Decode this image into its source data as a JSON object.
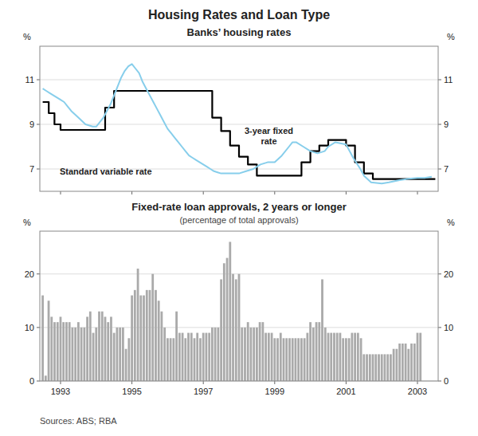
{
  "title": "Housing Rates and Loan Type",
  "source": "Sources: ABS; RBA",
  "chart_data": [
    {
      "type": "line",
      "title": "Banks’ housing rates",
      "ylabel": "%",
      "y2label": "%",
      "xlim": [
        1992.42,
        2003.58
      ],
      "xticks": [
        1993,
        1995,
        1997,
        1999,
        2001,
        2003
      ],
      "ylim": [
        6.0,
        12.5
      ],
      "yticks": [
        7,
        9,
        11
      ],
      "grid": true,
      "tick_labels": "y",
      "series": [
        {
          "name": "Standard variable rate",
          "color": "#000000",
          "line_style": "step",
          "x": [
            1992.5,
            1992.67,
            1992.83,
            1993.0,
            1993.25,
            1993.5,
            1993.75,
            1994.0,
            1994.25,
            1994.5,
            1994.75,
            1995.0,
            1995.25,
            1995.5,
            1995.75,
            1996.0,
            1996.25,
            1996.5,
            1996.75,
            1997.0,
            1997.25,
            1997.5,
            1997.75,
            1998.0,
            1998.25,
            1998.5,
            1998.75,
            1999.0,
            1999.25,
            1999.5,
            1999.75,
            2000.0,
            2000.25,
            2000.5,
            2000.75,
            2001.0,
            2001.25,
            2001.5,
            2001.75,
            2002.0,
            2002.25,
            2002.5,
            2002.75,
            2003.0,
            2003.5
          ],
          "values": [
            10.0,
            9.5,
            9.0,
            8.75,
            8.75,
            8.75,
            8.75,
            8.75,
            9.75,
            10.5,
            10.5,
            10.5,
            10.5,
            10.5,
            10.5,
            10.5,
            10.5,
            10.5,
            10.5,
            10.5,
            9.3,
            8.7,
            8.05,
            7.55,
            7.2,
            6.7,
            6.7,
            6.7,
            6.7,
            6.7,
            7.3,
            7.8,
            8.05,
            8.3,
            8.3,
            8.05,
            7.3,
            6.8,
            6.55,
            6.55,
            6.55,
            6.55,
            6.55,
            6.55,
            6.55
          ]
        },
        {
          "name": "3-year fixed\nrate",
          "color": "#87ceeb",
          "line_style": "solid",
          "x": [
            1992.5,
            1992.6,
            1992.7,
            1992.8,
            1992.9,
            1993.0,
            1993.1,
            1993.2,
            1993.3,
            1993.5,
            1993.7,
            1993.9,
            1994.0,
            1994.2,
            1994.4,
            1994.5,
            1994.6,
            1994.7,
            1994.8,
            1994.9,
            1995.0,
            1995.1,
            1995.2,
            1995.25,
            1995.3,
            1995.4,
            1995.5,
            1995.6,
            1995.7,
            1995.8,
            1995.9,
            1996.0,
            1996.1,
            1996.2,
            1996.3,
            1996.4,
            1996.5,
            1996.6,
            1996.7,
            1996.8,
            1996.9,
            1997.0,
            1997.1,
            1997.2,
            1997.3,
            1997.4,
            1997.5,
            1997.6,
            1997.7,
            1998.0,
            1998.2,
            1998.4,
            1998.5,
            1998.6,
            1998.8,
            1999.0,
            1999.2,
            1999.4,
            1999.5,
            1999.6,
            1999.8,
            2000.0,
            2000.2,
            2000.4,
            2000.5,
            2000.7,
            2001.0,
            2001.2,
            2001.4,
            2001.5,
            2001.7,
            2002.0,
            2002.2,
            2002.5,
            2002.7,
            2003.0,
            2003.2,
            2003.4
          ],
          "values": [
            10.6,
            10.5,
            10.4,
            10.3,
            10.2,
            10.1,
            10.0,
            9.8,
            9.6,
            9.3,
            9.0,
            8.9,
            8.9,
            9.3,
            9.9,
            10.3,
            10.7,
            11.1,
            11.4,
            11.6,
            11.7,
            11.5,
            11.3,
            11.1,
            10.9,
            10.6,
            10.3,
            10.0,
            9.7,
            9.4,
            9.1,
            8.8,
            8.6,
            8.4,
            8.2,
            8.0,
            7.8,
            7.6,
            7.5,
            7.4,
            7.3,
            7.2,
            7.1,
            7.0,
            6.9,
            6.85,
            6.8,
            6.8,
            6.8,
            6.8,
            6.9,
            7.0,
            7.1,
            7.2,
            7.3,
            7.3,
            7.6,
            8.0,
            8.2,
            8.2,
            8.0,
            7.8,
            7.7,
            7.8,
            8.0,
            8.2,
            8.1,
            7.5,
            7.0,
            6.7,
            6.4,
            6.35,
            6.4,
            6.5,
            6.55,
            6.6,
            6.6,
            6.65
          ]
        }
      ]
    },
    {
      "type": "bar",
      "title": "Fixed-rate loan approvals, 2 years or longer",
      "subtitle": "(percentage of total approvals)",
      "ylabel": "%",
      "y2label": "%",
      "color": "#aaaaaa",
      "xlim": [
        1992.42,
        2003.58
      ],
      "xticks": [
        1993,
        1995,
        1997,
        1999,
        2001,
        2003
      ],
      "ylim": [
        0,
        28
      ],
      "yticks": [
        0,
        10,
        20
      ],
      "grid": true,
      "x": [
        1992.5,
        1992.583,
        1992.667,
        1992.75,
        1992.833,
        1992.917,
        1993.0,
        1993.083,
        1993.167,
        1993.25,
        1993.333,
        1993.417,
        1993.5,
        1993.583,
        1993.667,
        1993.75,
        1993.833,
        1993.917,
        1994.0,
        1994.083,
        1994.167,
        1994.25,
        1994.333,
        1994.417,
        1994.5,
        1994.583,
        1994.667,
        1994.75,
        1994.833,
        1994.917,
        1995.0,
        1995.083,
        1995.167,
        1995.25,
        1995.333,
        1995.417,
        1995.5,
        1995.583,
        1995.667,
        1995.75,
        1995.833,
        1995.917,
        1996.0,
        1996.083,
        1996.167,
        1996.25,
        1996.333,
        1996.417,
        1996.5,
        1996.583,
        1996.667,
        1996.75,
        1996.833,
        1996.917,
        1997.0,
        1997.083,
        1997.167,
        1997.25,
        1997.333,
        1997.417,
        1997.5,
        1997.583,
        1997.667,
        1997.75,
        1997.833,
        1997.917,
        1998.0,
        1998.083,
        1998.167,
        1998.25,
        1998.333,
        1998.417,
        1998.5,
        1998.583,
        1998.667,
        1998.75,
        1998.833,
        1998.917,
        1999.0,
        1999.083,
        1999.167,
        1999.25,
        1999.333,
        1999.417,
        1999.5,
        1999.583,
        1999.667,
        1999.75,
        1999.833,
        1999.917,
        2000.0,
        2000.083,
        2000.167,
        2000.25,
        2000.333,
        2000.417,
        2000.5,
        2000.583,
        2000.667,
        2000.75,
        2000.833,
        2000.917,
        2001.0,
        2001.083,
        2001.167,
        2001.25,
        2001.333,
        2001.417,
        2001.5,
        2001.583,
        2001.667,
        2001.75,
        2001.833,
        2001.917,
        2002.0,
        2002.083,
        2002.167,
        2002.25,
        2002.333,
        2002.417,
        2002.5,
        2002.583,
        2002.667,
        2002.75,
        2002.833,
        2002.917,
        2003.0,
        2003.083
      ],
      "values": [
        16,
        1,
        15,
        12,
        11,
        11,
        12,
        11,
        11,
        11,
        10,
        10,
        11,
        10,
        10,
        12,
        13,
        9,
        10,
        13,
        13,
        12,
        11,
        12,
        9,
        10,
        10,
        10,
        6,
        8,
        16,
        17,
        21,
        16,
        16,
        17,
        17,
        20,
        17,
        15,
        13,
        10,
        8,
        8,
        8,
        13,
        9,
        9,
        8,
        9,
        9,
        8,
        9,
        8,
        9,
        9,
        9,
        10,
        10,
        10,
        19,
        22,
        23,
        26,
        20,
        19,
        20,
        10,
        10,
        11,
        10,
        10,
        10,
        11,
        11,
        9,
        9,
        9,
        8,
        8,
        9,
        8,
        8,
        8,
        8,
        8,
        8,
        8,
        8,
        9,
        11,
        10,
        11,
        11,
        19,
        10,
        9,
        9,
        9,
        9,
        9,
        8,
        8,
        8,
        9,
        9,
        9,
        8,
        5,
        5,
        5,
        5,
        5,
        5,
        5,
        5,
        5,
        5,
        6,
        6,
        7,
        7,
        7,
        6,
        7,
        7,
        9,
        9
      ]
    }
  ]
}
